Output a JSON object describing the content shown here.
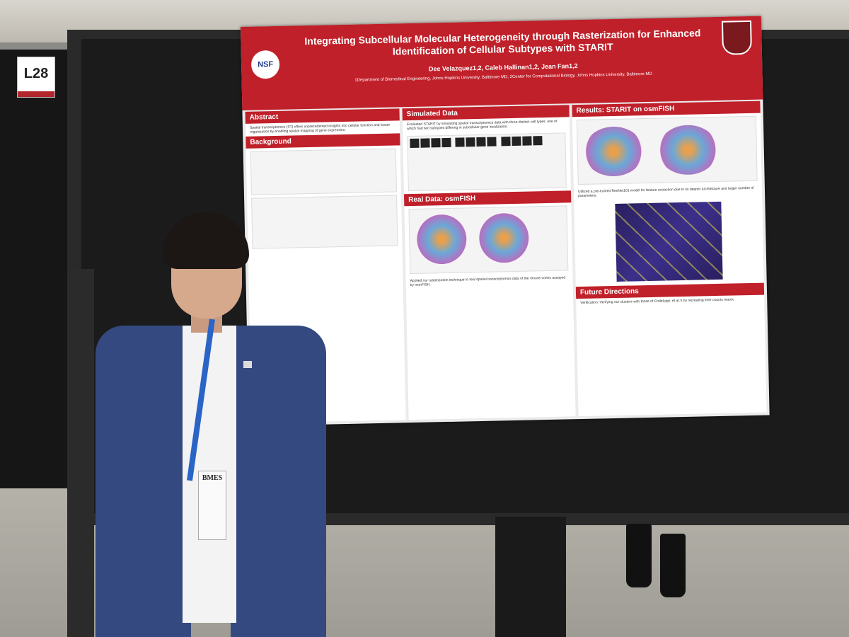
{
  "booth": {
    "label": "L28"
  },
  "poster": {
    "title": "Integrating Subcellular Molecular Heterogeneity through Rasterization for Enhanced Identification of Cellular Subtypes with STARIT",
    "authors": "Dee Velazquez1,2, Caleb Hallinan1,2, Jean Fan1,2",
    "affiliation": "1Department of Biomedical Engineering, Johns Hopkins University, Baltimore MD; 2Center for Computational Biology, Johns Hopkins University, Baltimore MD",
    "logo_left": "NSF",
    "sections": {
      "abstract": "Abstract",
      "background": "Background",
      "simulated": "Simulated Data",
      "real": "Real Data: osmFISH",
      "results": "Results: STARIT on osmFISH",
      "future": "Future Directions"
    },
    "abstract_text": "Spatial transcriptomics (ST) offers unprecedented insights into cellular function and tissue organization by enabling spatial mapping of gene expression.",
    "simulated_text": "Evaluated STARIT by simulating spatial transcriptomics data with three distinct cell types, one of which had two subtypes differing in subcellular gene localization.",
    "real_text": "Applied our rasterization technique to real spatial transcriptomics data of the mouse cortex assayed by osmFISH.",
    "results_text": "Utilized a pre-trained ResNet101 model for feature extraction due to its deeper architecture and larger number of parameters.",
    "future_text": "Verification: Verifying our clusters with those of Codeluppi, et al.'s by recreating their counts matrix."
  },
  "badge": {
    "label": "BMES"
  }
}
